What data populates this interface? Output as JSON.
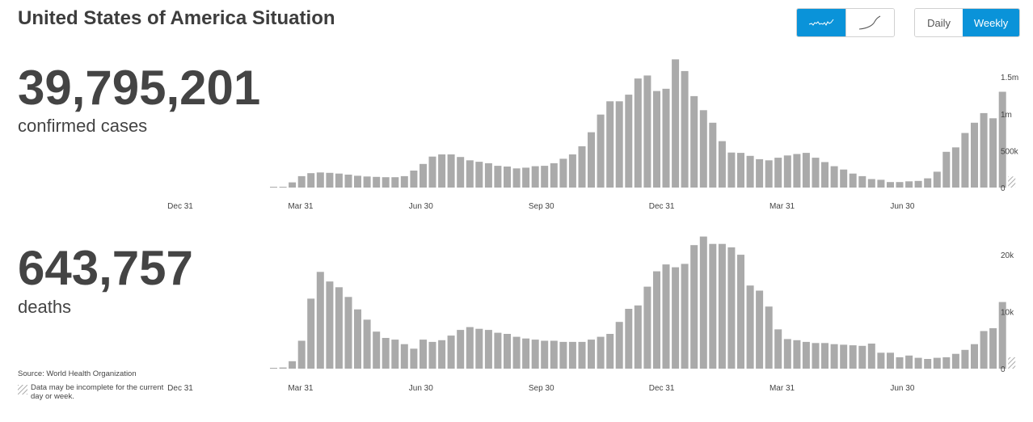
{
  "title": "United States of America Situation",
  "controls": {
    "scale_linear_icon": "sparkline-linear-icon",
    "scale_cumulative_icon": "cumulative-curve-icon",
    "daily_label": "Daily",
    "weekly_label": "Weekly",
    "active_color": "#0a93d9"
  },
  "cases": {
    "total": "39,795,201",
    "label": "confirmed cases"
  },
  "deaths": {
    "total": "643,757",
    "label": "deaths"
  },
  "footer": {
    "source": "Source:  World Health Organization",
    "note": "Data may be incomplete for the current day or week."
  },
  "chart_data": [
    {
      "type": "bar",
      "name": "confirmed cases",
      "bar_color": "#aaaaaa",
      "last_bar_style": "hatched",
      "x_tick_labels": [
        "Dec 31",
        "Mar 31",
        "Jun 30",
        "Sep 30",
        "Dec 31",
        "Mar 31",
        "Jun 30"
      ],
      "y_tick_labels": [
        "0",
        "500k",
        "1m",
        "1.5m"
      ],
      "y_ticks": [
        0,
        500000,
        1000000,
        1500000
      ],
      "ylim": [
        0,
        1700000
      ],
      "values": [
        2000,
        8000,
        70000,
        155000,
        195000,
        205000,
        200000,
        190000,
        175000,
        160000,
        150000,
        145000,
        140000,
        140000,
        155000,
        230000,
        320000,
        420000,
        450000,
        450000,
        415000,
        370000,
        350000,
        330000,
        295000,
        285000,
        260000,
        270000,
        290000,
        295000,
        330000,
        390000,
        450000,
        560000,
        750000,
        990000,
        1170000,
        1170000,
        1260000,
        1480000,
        1520000,
        1310000,
        1340000,
        1740000,
        1580000,
        1240000,
        1050000,
        880000,
        630000,
        475000,
        470000,
        430000,
        385000,
        370000,
        405000,
        435000,
        455000,
        470000,
        405000,
        345000,
        290000,
        245000,
        190000,
        155000,
        115000,
        105000,
        75000,
        75000,
        85000,
        90000,
        125000,
        215000,
        485000,
        545000,
        740000,
        880000,
        1010000,
        940000,
        1300000,
        150000
      ]
    },
    {
      "type": "bar",
      "name": "deaths",
      "bar_color": "#aaaaaa",
      "last_bar_style": "hatched",
      "x_tick_labels": [
        "Dec 31",
        "Mar 31",
        "Jun 30",
        "Sep 30",
        "Dec 31",
        "Mar 31",
        "Jun 30"
      ],
      "y_tick_labels": [
        "0",
        "10k",
        "20k"
      ],
      "y_ticks": [
        0,
        10000,
        20000
      ],
      "ylim": [
        0,
        23000
      ],
      "values": [
        20,
        200,
        1300,
        4900,
        12300,
        17000,
        15300,
        14300,
        12600,
        10400,
        8600,
        6500,
        5400,
        5100,
        4300,
        3500,
        5100,
        4700,
        5000,
        5800,
        6800,
        7300,
        7000,
        6800,
        6300,
        6100,
        5600,
        5300,
        5100,
        4900,
        4900,
        4700,
        4700,
        4700,
        5100,
        5600,
        6100,
        8200,
        10500,
        11100,
        14400,
        17100,
        18300,
        17800,
        18400,
        21700,
        23200,
        21900,
        21900,
        21300,
        20000,
        14600,
        13700,
        10900,
        6900,
        5200,
        5000,
        4700,
        4500,
        4500,
        4300,
        4200,
        4100,
        4000,
        4400,
        2800,
        2800,
        2000,
        2300,
        1900,
        1700,
        1900,
        2000,
        2600,
        3300,
        4300,
        6600,
        7100,
        11700,
        2000
      ]
    }
  ]
}
